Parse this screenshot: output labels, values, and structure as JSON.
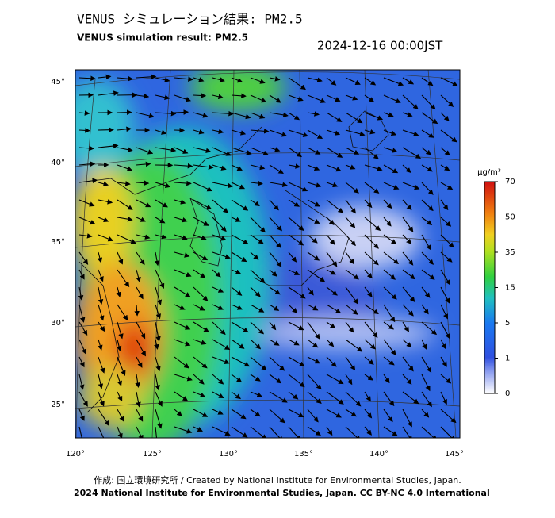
{
  "header": {
    "title": "VENUS シミュレーション結果: PM2.5",
    "subtitle": "VENUS simulation result: PM2.5",
    "timestamp": "2024-12-16 00:00JST"
  },
  "map": {
    "lat_labels": [
      "45°",
      "40°",
      "35°",
      "30°",
      "25°"
    ],
    "lon_labels": [
      "120°",
      "125°",
      "130°",
      "135°",
      "140°",
      "145°"
    ]
  },
  "colorbar": {
    "unit": "μg/m³",
    "labels": [
      "70",
      "50",
      "35",
      "15",
      "5",
      "1",
      "0"
    ]
  },
  "footer": {
    "credit": "作成: 国立環境研究所 / Created by National Institute for Environmental Studies, Japan.",
    "license": "2024 National Institute for Environmental Studies, Japan. CC BY-NC 4.0 International"
  }
}
